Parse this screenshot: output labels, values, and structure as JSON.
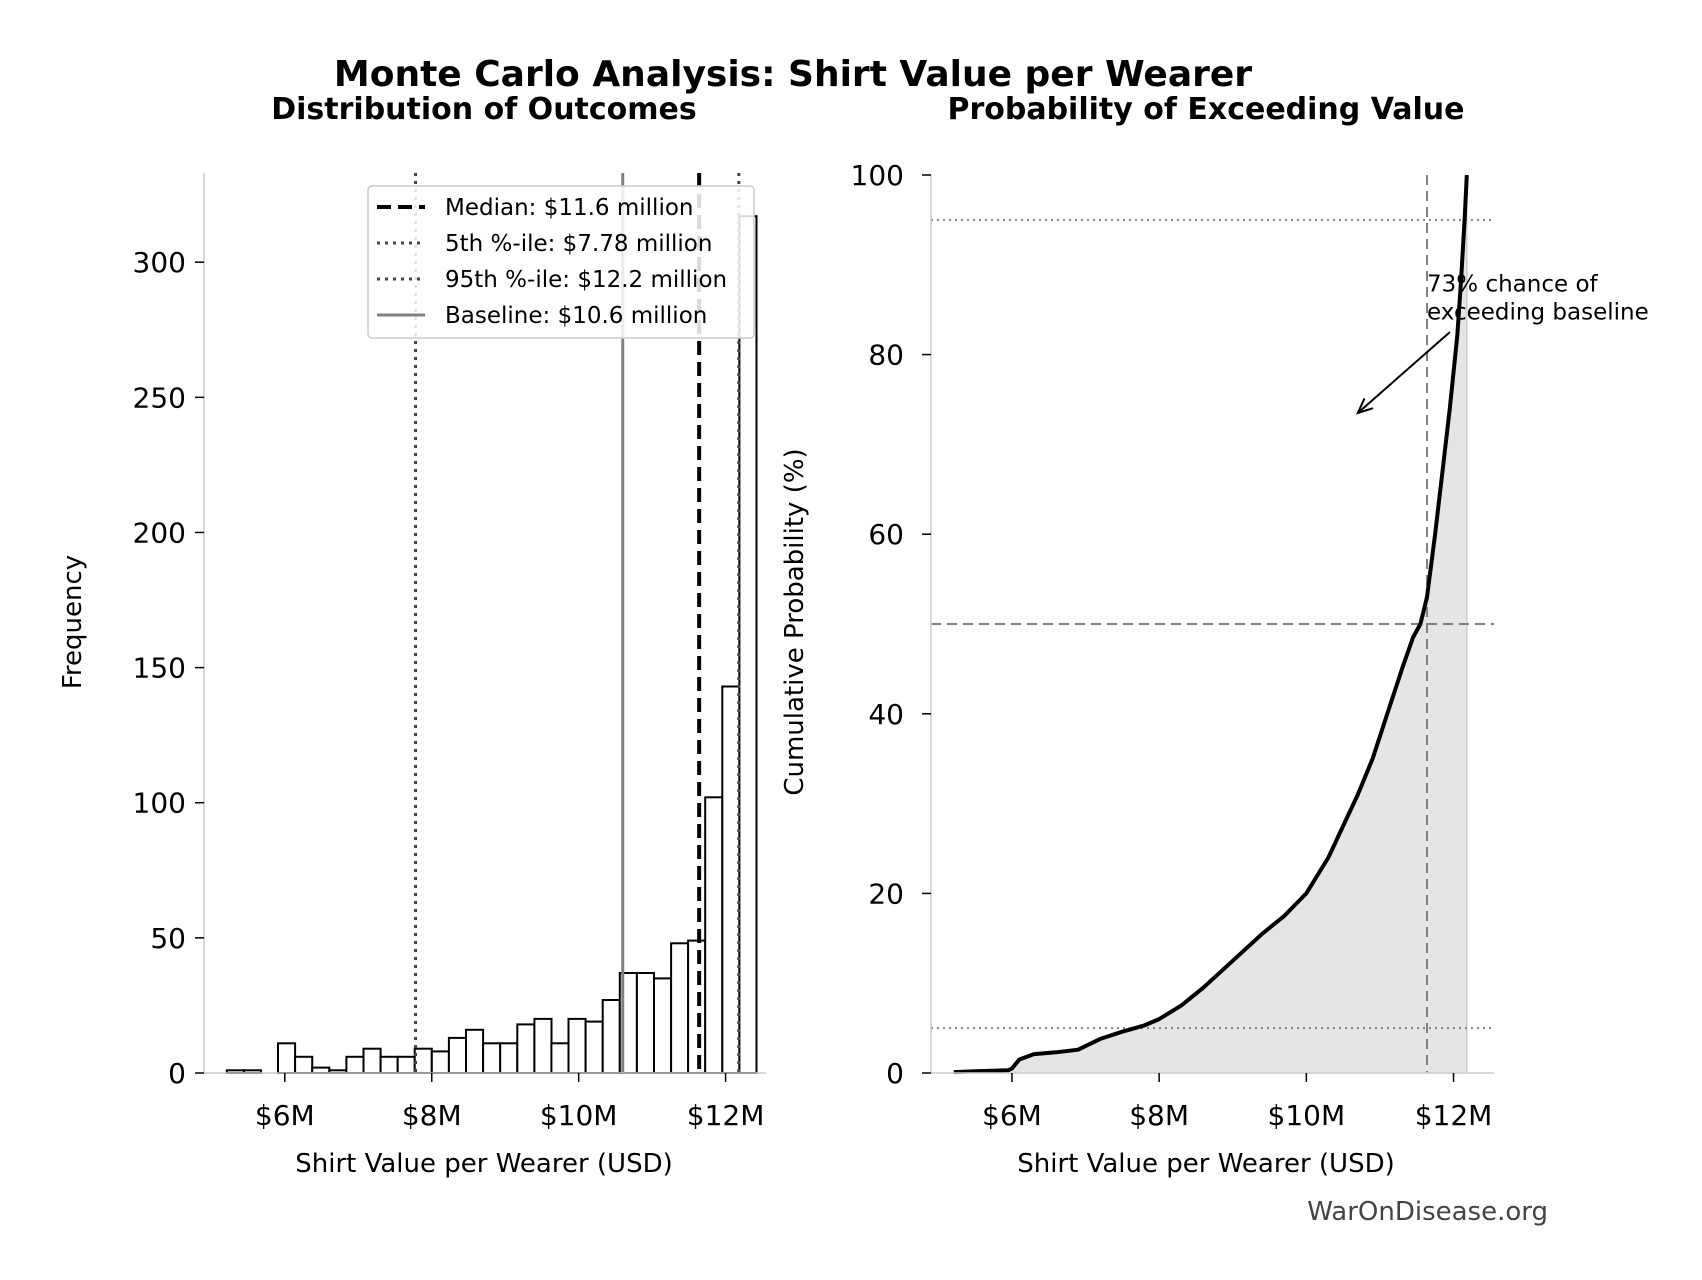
{
  "figure": {
    "title": "Monte Carlo Analysis: Shirt Value per Wearer",
    "watermark": "WarOnDisease.org"
  },
  "chart_data": [
    {
      "type": "bar",
      "title": "Distribution of Outcomes",
      "xlabel": "Shirt Value per Wearer (USD)",
      "ylabel": "Frequency",
      "xlim": [
        4.9,
        12.55
      ],
      "ylim": [
        0,
        333
      ],
      "x_ticks": [
        {
          "value": 6,
          "label": "$6M"
        },
        {
          "value": 8,
          "label": "$8M"
        },
        {
          "value": 10,
          "label": "$10M"
        },
        {
          "value": 12,
          "label": "$12M"
        }
      ],
      "y_ticks": [
        0,
        50,
        100,
        150,
        200,
        250,
        300
      ],
      "bin_start": 5.21,
      "bin_width": 0.2326,
      "counts": [
        1,
        1,
        0,
        11,
        6,
        2,
        1,
        6,
        9,
        6,
        6,
        9,
        8,
        13,
        16,
        11,
        11,
        18,
        20,
        11,
        20,
        19,
        27,
        37,
        37,
        35,
        48,
        49,
        102,
        143,
        317
      ],
      "bar_fill": "#ffffff",
      "bar_edge": "#000000",
      "reference_lines": [
        {
          "x": 11.64,
          "style": "dashed",
          "color": "#000000"
        },
        {
          "x": 7.78,
          "style": "dotted",
          "color": "#444444"
        },
        {
          "x": 12.18,
          "style": "dotted",
          "color": "#444444"
        },
        {
          "x": 10.6,
          "style": "solid",
          "color": "#808080"
        }
      ],
      "legend": {
        "position": "top-right",
        "entries": [
          {
            "label": "Median: $11.6 million",
            "style": "dashed",
            "color": "#000000"
          },
          {
            "label": "5th %-ile: $7.78 million",
            "style": "dotted",
            "color": "#444444"
          },
          {
            "label": "95th %-ile: $12.2 million",
            "style": "dotted",
            "color": "#444444"
          },
          {
            "label": "Baseline: $10.6 million",
            "style": "solid",
            "color": "#808080"
          }
        ]
      }
    },
    {
      "type": "area",
      "title": "Probability of Exceeding Value",
      "xlabel": "Shirt Value per Wearer (USD)",
      "ylabel": "Cumulative Probability (%)",
      "xlim": [
        4.9,
        12.55
      ],
      "ylim": [
        0,
        100
      ],
      "x_ticks": [
        {
          "value": 6,
          "label": "$6M"
        },
        {
          "value": 8,
          "label": "$8M"
        },
        {
          "value": 10,
          "label": "$10M"
        },
        {
          "value": 12,
          "label": "$12M"
        }
      ],
      "y_ticks": [
        0,
        20,
        40,
        60,
        80,
        100
      ],
      "curve": {
        "x": [
          5.21,
          5.5,
          5.95,
          6.0,
          6.1,
          6.3,
          6.6,
          6.9,
          7.0,
          7.2,
          7.5,
          7.8,
          8.0,
          8.3,
          8.6,
          9.0,
          9.4,
          9.7,
          10.0,
          10.3,
          10.5,
          10.7,
          10.9,
          11.1,
          11.3,
          11.45,
          11.55,
          11.64,
          11.75,
          11.85,
          11.95,
          12.05,
          12.1,
          12.15,
          12.18
        ],
        "y": [
          0.1,
          0.2,
          0.3,
          0.5,
          1.5,
          2.1,
          2.3,
          2.6,
          3.0,
          3.8,
          4.6,
          5.3,
          6.0,
          7.5,
          9.5,
          12.5,
          15.5,
          17.5,
          20.0,
          24.0,
          27.5,
          31.0,
          35.0,
          40.0,
          45.0,
          48.5,
          50.0,
          53.0,
          60.0,
          67.0,
          74.0,
          82.0,
          88.0,
          95.0,
          100.0
        ],
        "color": "#000000",
        "fill": "#e5e5e5"
      },
      "h_lines": [
        {
          "y": 95,
          "style": "dotted",
          "color": "#808080"
        },
        {
          "y": 50,
          "style": "dashed",
          "color": "#808080"
        },
        {
          "y": 5,
          "style": "dotted",
          "color": "#808080"
        }
      ],
      "v_lines": [
        {
          "x": 11.64,
          "style": "dashed",
          "color": "#808080"
        }
      ],
      "annotation": {
        "lines": [
          "73% chance of",
          "exceeding baseline"
        ],
        "text_at": [
          11.64,
          87
        ],
        "arrow_from": [
          11.95,
          82.5
        ],
        "arrow_to": [
          10.7,
          73.5
        ]
      }
    }
  ]
}
